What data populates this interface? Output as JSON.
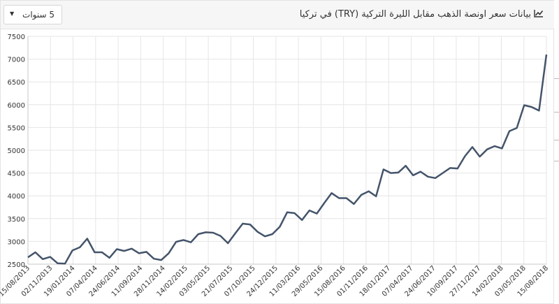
{
  "header": {
    "title": "بيانات سعر اونصة الذهب مقابل الليرة التركية (TRY) في تركيا",
    "period_selector": {
      "value": "5 سنوات"
    }
  },
  "colors": {
    "line": "#44546a",
    "grid": "#e6e6e6",
    "axis": "#c8c8c8"
  },
  "chart_data": {
    "type": "line",
    "title": "بيانات سعر اونصة الذهب مقابل الليرة التركية (TRY) في تركيا",
    "xlabel": "",
    "ylabel": "",
    "ylim": [
      2500,
      7500
    ],
    "y_ticks": [
      2500,
      3000,
      3500,
      4000,
      4500,
      5000,
      5500,
      6000,
      6500,
      7000,
      7500
    ],
    "x_tick_labels": [
      "15/08/2013",
      "02/11/2013",
      "19/01/2014",
      "07/04/2014",
      "24/06/2014",
      "11/09/2014",
      "28/11/2014",
      "14/02/2015",
      "03/05/2015",
      "21/07/2015",
      "07/10/2015",
      "24/12/2015",
      "11/03/2016",
      "29/05/2016",
      "15/08/2016",
      "01/11/2016",
      "18/01/2017",
      "07/04/2017",
      "24/06/2017",
      "10/09/2017",
      "27/11/2017",
      "14/02/2018",
      "03/05/2018",
      "15/08/2018"
    ],
    "grid": true,
    "legend": "none",
    "series": [
      {
        "values": [
          2650,
          2760,
          2610,
          2660,
          2520,
          2510,
          2800,
          2870,
          3060,
          2760,
          2760,
          2640,
          2830,
          2790,
          2840,
          2740,
          2770,
          2620,
          2590,
          2740,
          2990,
          3030,
          2980,
          3160,
          3200,
          3190,
          3120,
          2960,
          3180,
          3390,
          3370,
          3210,
          3110,
          3160,
          3320,
          3640,
          3620,
          3470,
          3680,
          3610,
          3840,
          4060,
          3950,
          3950,
          3820,
          4020,
          4100,
          3990,
          4580,
          4500,
          4510,
          4660,
          4450,
          4530,
          4420,
          4390,
          4500,
          4610,
          4600,
          4870,
          5070,
          4860,
          5020,
          5090,
          5040,
          5420,
          5490,
          5990,
          5950,
          5870,
          7100
        ]
      }
    ]
  }
}
